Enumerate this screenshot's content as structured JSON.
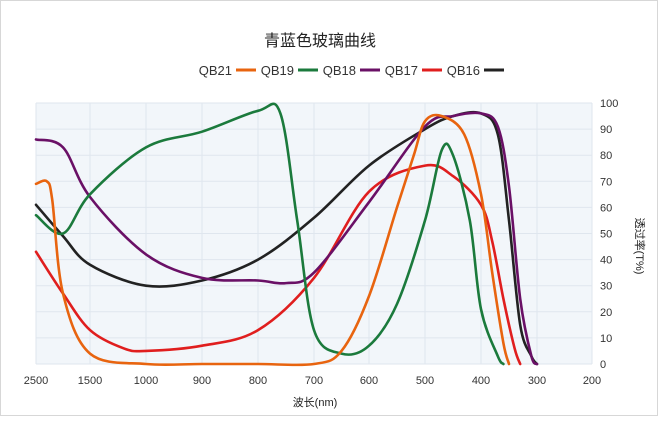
{
  "chart_data": {
    "type": "line",
    "title": "青蓝色玻璃曲线",
    "xlabel": "波长(nm)",
    "ylabel": "透过率(T%)",
    "x_tick_labels": [
      "2500",
      "1500",
      "1000",
      "900",
      "800",
      "700",
      "600",
      "500",
      "400",
      "300",
      "200"
    ],
    "ylim": [
      0,
      100
    ],
    "y_ticks": [
      0,
      10,
      20,
      30,
      40,
      50,
      60,
      70,
      80,
      90,
      100
    ],
    "legend_position": "top",
    "grid": true,
    "series": [
      {
        "name": "QB16",
        "color": "#222222",
        "points": [
          [
            2500,
            61
          ],
          [
            2000,
            49
          ],
          [
            1500,
            38
          ],
          [
            1000,
            30
          ],
          [
            900,
            32
          ],
          [
            800,
            40
          ],
          [
            700,
            56
          ],
          [
            600,
            76
          ],
          [
            500,
            90
          ],
          [
            450,
            95
          ],
          [
            400,
            96
          ],
          [
            370,
            88
          ],
          [
            350,
            55
          ],
          [
            330,
            15
          ],
          [
            310,
            3
          ],
          [
            300,
            0
          ]
        ]
      },
      {
        "name": "QB17",
        "color": "#e01e1e",
        "points": [
          [
            2500,
            43
          ],
          [
            2000,
            27
          ],
          [
            1500,
            13
          ],
          [
            1200,
            6
          ],
          [
            1000,
            5
          ],
          [
            900,
            7
          ],
          [
            800,
            13
          ],
          [
            700,
            33
          ],
          [
            600,
            66
          ],
          [
            500,
            76
          ],
          [
            450,
            72
          ],
          [
            400,
            61
          ],
          [
            380,
            47
          ],
          [
            360,
            25
          ],
          [
            340,
            6
          ],
          [
            330,
            0
          ]
        ]
      },
      {
        "name": "QB18",
        "color": "#6a1066",
        "points": [
          [
            2500,
            86
          ],
          [
            2000,
            83
          ],
          [
            1500,
            64
          ],
          [
            1000,
            42
          ],
          [
            900,
            33
          ],
          [
            800,
            32
          ],
          [
            750,
            31
          ],
          [
            700,
            35
          ],
          [
            600,
            62
          ],
          [
            500,
            91
          ],
          [
            450,
            95
          ],
          [
            400,
            96
          ],
          [
            370,
            91
          ],
          [
            350,
            68
          ],
          [
            330,
            25
          ],
          [
            310,
            3
          ],
          [
            300,
            0
          ]
        ]
      },
      {
        "name": "QB19",
        "color": "#1b7a3c",
        "points": [
          [
            2500,
            57
          ],
          [
            2000,
            50
          ],
          [
            1500,
            65
          ],
          [
            1000,
            83
          ],
          [
            900,
            89
          ],
          [
            800,
            97
          ],
          [
            760,
            96
          ],
          [
            730,
            55
          ],
          [
            700,
            13
          ],
          [
            650,
            4
          ],
          [
            600,
            7
          ],
          [
            550,
            23
          ],
          [
            500,
            55
          ],
          [
            470,
            82
          ],
          [
            450,
            80
          ],
          [
            420,
            55
          ],
          [
            400,
            21
          ],
          [
            370,
            3
          ],
          [
            360,
            0
          ]
        ]
      },
      {
        "name": "QB21",
        "color": "#e8640f",
        "points": [
          [
            2500,
            69
          ],
          [
            2300,
            70
          ],
          [
            2200,
            63
          ],
          [
            2000,
            27
          ],
          [
            1500,
            4
          ],
          [
            1000,
            0
          ],
          [
            900,
            0
          ],
          [
            800,
            0
          ],
          [
            700,
            0
          ],
          [
            650,
            5
          ],
          [
            600,
            26
          ],
          [
            550,
            60
          ],
          [
            520,
            80
          ],
          [
            500,
            93
          ],
          [
            470,
            95
          ],
          [
            430,
            88
          ],
          [
            400,
            65
          ],
          [
            380,
            35
          ],
          [
            360,
            8
          ],
          [
            350,
            0
          ]
        ]
      }
    ]
  }
}
